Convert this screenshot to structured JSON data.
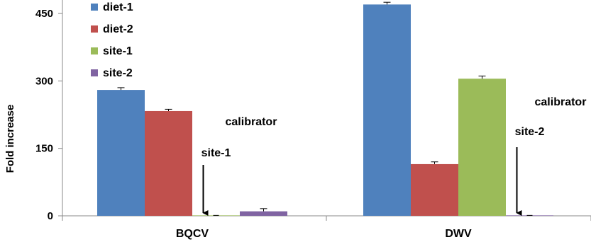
{
  "chart_data": {
    "type": "bar",
    "title": "",
    "xlabel": "",
    "ylabel": "Fold increase",
    "ylim": [
      0,
      480
    ],
    "yticks": [
      0,
      150,
      300,
      450
    ],
    "grid": false,
    "legend_position": "top-left",
    "categories": [
      "BQCV",
      "DWV"
    ],
    "series": [
      {
        "name": "diet-1",
        "color": "#4f81bd",
        "values": [
          280,
          470
        ],
        "errors": [
          5,
          5
        ]
      },
      {
        "name": "diet-2",
        "color": "#c0504d",
        "values": [
          233,
          115
        ],
        "errors": [
          4,
          5
        ]
      },
      {
        "name": "site-1",
        "color": "#9bbb59",
        "values": [
          1,
          305
        ],
        "errors": [
          0,
          6
        ]
      },
      {
        "name": "site-2",
        "color": "#8064a2",
        "values": [
          10,
          1
        ],
        "errors": [
          6,
          0
        ]
      }
    ],
    "annotations": [
      {
        "text": "calibrator",
        "category": "BQCV",
        "target_series": "diet-2",
        "arrow": false
      },
      {
        "text": "site-1",
        "category": "BQCV",
        "target_series": "site-1",
        "arrow": true
      },
      {
        "text": "calibrator",
        "category": "DWV",
        "target_series": "site-1",
        "arrow": false
      },
      {
        "text": "site-2",
        "category": "DWV",
        "target_series": "site-2",
        "arrow": true
      }
    ]
  }
}
